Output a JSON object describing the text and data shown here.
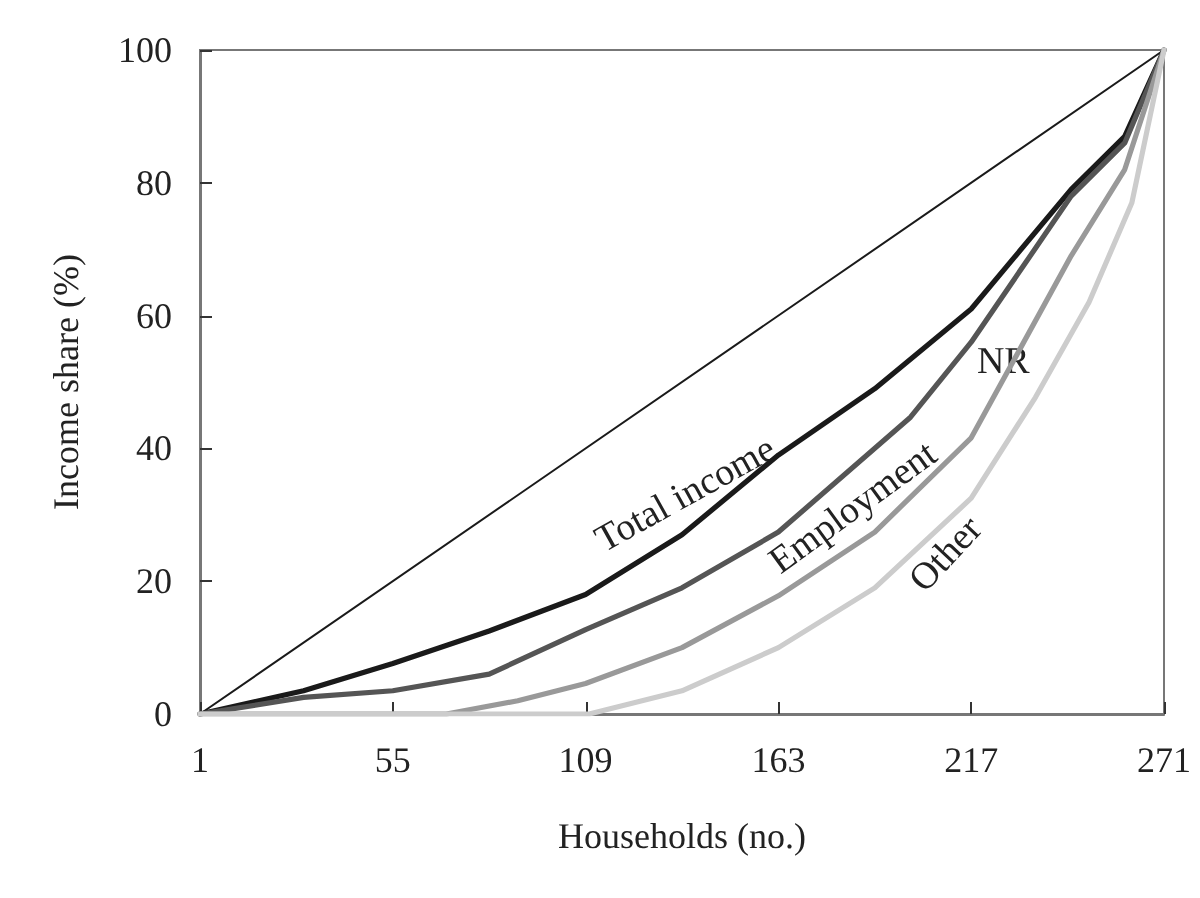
{
  "chart_data": {
    "type": "line",
    "xlabel": "Households (no.)",
    "ylabel": "Income share (%)",
    "xlim": [
      1,
      271
    ],
    "xticks": [
      1,
      55,
      109,
      163,
      217,
      271
    ],
    "ylim": [
      0,
      100
    ],
    "yticks": [
      0,
      20,
      40,
      60,
      80,
      100
    ],
    "grid": false,
    "legend": false,
    "marker": "none",
    "line_style": "solid",
    "series": [
      {
        "color": "#1a1a1a",
        "x": [
          1,
          271
        ],
        "values": [
          0,
          100
        ]
      },
      {
        "name": "Total income",
        "color": "#1a1a1a",
        "x": [
          1,
          30,
          55,
          82,
          109,
          136,
          163,
          190,
          217,
          245,
          260,
          271
        ],
        "values": [
          0,
          3.5,
          7.6,
          12.5,
          18,
          27,
          39,
          49,
          61,
          79,
          87,
          100
        ]
      },
      {
        "name": "NR",
        "color": "#555555",
        "x": [
          1,
          30,
          55,
          82,
          109,
          136,
          163,
          200,
          217,
          245,
          260,
          271
        ],
        "values": [
          0,
          2.5,
          3.5,
          6,
          12.7,
          19,
          27.4,
          44.7,
          56,
          78,
          86,
          100
        ]
      },
      {
        "name": "Employment",
        "color": "#999999",
        "x": [
          1,
          70,
          90,
          109,
          136,
          163,
          190,
          217,
          245,
          260,
          271
        ],
        "values": [
          0,
          0,
          2,
          4.6,
          10,
          17.8,
          27.4,
          41.6,
          69,
          82,
          100
        ]
      },
      {
        "name": "Other",
        "color": "#cccccc",
        "x": [
          1,
          110,
          136,
          163,
          190,
          217,
          235,
          250,
          262,
          271
        ],
        "values": [
          0,
          0,
          3.5,
          10,
          19,
          32.5,
          47.7,
          62,
          77,
          100
        ]
      }
    ]
  }
}
